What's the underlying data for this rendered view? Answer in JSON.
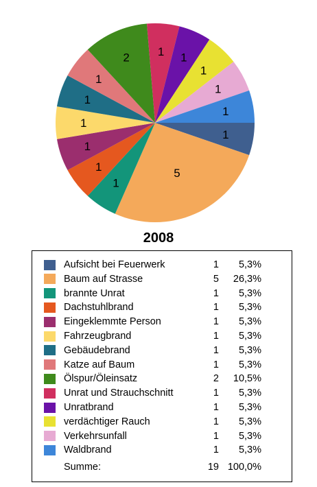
{
  "chart_data": {
    "type": "pie",
    "title": "2008",
    "slices": [
      {
        "label": "Aufsicht bei Feuerwerk",
        "value": 1,
        "percent": "5,3%",
        "color": "#3f5f8f"
      },
      {
        "label": "Baum auf Strasse",
        "value": 5,
        "percent": "26,3%",
        "color": "#f4a95a"
      },
      {
        "label": "brannte Unrat",
        "value": 1,
        "percent": "5,3%",
        "color": "#13957a"
      },
      {
        "label": "Dachstuhlbrand",
        "value": 1,
        "percent": "5,3%",
        "color": "#e5581f"
      },
      {
        "label": "Eingeklemmte Person",
        "value": 1,
        "percent": "5,3%",
        "color": "#9b2e6e"
      },
      {
        "label": "Fahrzeugbrand",
        "value": 1,
        "percent": "5,3%",
        "color": "#fcd96b"
      },
      {
        "label": "Gebäudebrand",
        "value": 1,
        "percent": "5,3%",
        "color": "#1f6e86"
      },
      {
        "label": "Katze auf Baum",
        "value": 1,
        "percent": "5,3%",
        "color": "#e0787a"
      },
      {
        "label": "Ölspur/Öleinsatz",
        "value": 2,
        "percent": "10,5%",
        "color": "#3f8a1c"
      },
      {
        "label": "Unrat und Strauchschnitt",
        "value": 1,
        "percent": "5,3%",
        "color": "#d02f5f"
      },
      {
        "label": "Unratbrand",
        "value": 1,
        "percent": "5,3%",
        "color": "#6a12a8"
      },
      {
        "label": "verdächtiger Rauch",
        "value": 1,
        "percent": "5,3%",
        "color": "#e8e132"
      },
      {
        "label": "Verkehrsunfall",
        "value": 1,
        "percent": "5,3%",
        "color": "#e7aad3"
      },
      {
        "label": "Waldbrand",
        "value": 1,
        "percent": "5,3%",
        "color": "#3d86d9"
      }
    ],
    "total": {
      "label": "Summe:",
      "value": 19,
      "percent": "100,0%"
    },
    "legend_position": "bottom"
  }
}
